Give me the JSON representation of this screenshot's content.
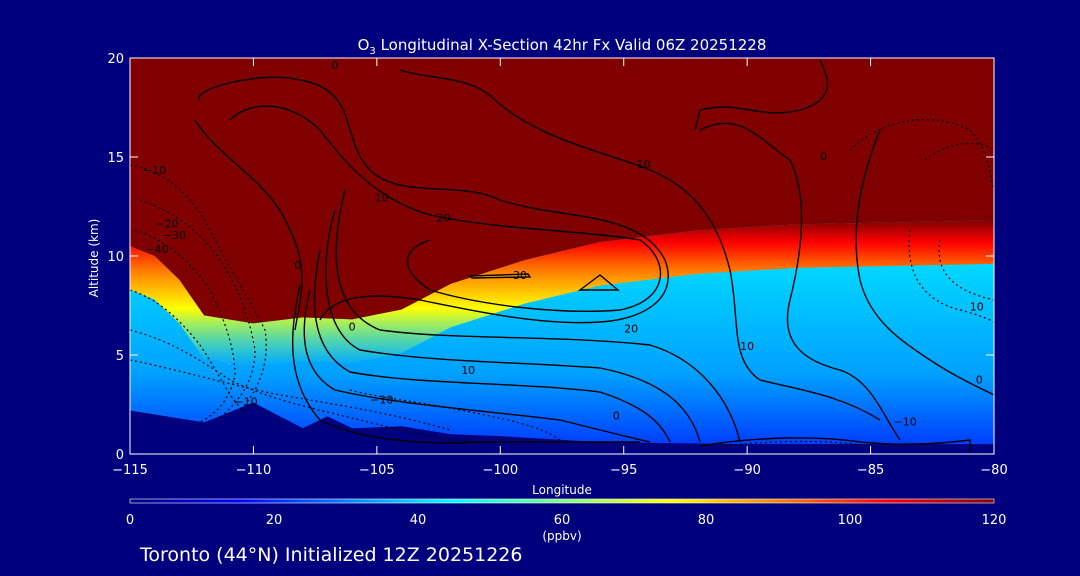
{
  "page": {
    "background": "#00007f",
    "foreground": "#ffffff"
  },
  "chart_data": {
    "type": "heatmap",
    "title_prefix": "O",
    "title_subscript": "3",
    "title_rest": " Longitudinal X-Section 42hr  Fx Valid 06Z 20251228",
    "xlabel": "Longitude",
    "ylabel": "Altitude (km)",
    "xlim": [
      -115,
      -80
    ],
    "ylim": [
      0,
      20
    ],
    "x_ticks": [
      {
        "v": -115,
        "label": "−115"
      },
      {
        "v": -110,
        "label": "−110"
      },
      {
        "v": -105,
        "label": "−105"
      },
      {
        "v": -100,
        "label": "−100"
      },
      {
        "v": -95,
        "label": "−95"
      },
      {
        "v": -90,
        "label": "−90"
      },
      {
        "v": -85,
        "label": "−85"
      },
      {
        "v": -80,
        "label": "−80"
      }
    ],
    "y_ticks": [
      {
        "v": 0,
        "label": "0"
      },
      {
        "v": 5,
        "label": "5"
      },
      {
        "v": 10,
        "label": "10"
      },
      {
        "v": 15,
        "label": "15"
      },
      {
        "v": 20,
        "label": "20"
      }
    ],
    "grid": false,
    "colorbar": {
      "min": 0,
      "max": 120,
      "units": "(ppbv)",
      "ticks": [
        {
          "v": 0,
          "label": "0"
        },
        {
          "v": 20,
          "label": "20"
        },
        {
          "v": 40,
          "label": "40"
        },
        {
          "v": 60,
          "label": "60"
        },
        {
          "v": 80,
          "label": "80"
        },
        {
          "v": 100,
          "label": "100"
        },
        {
          "v": 120,
          "label": "120"
        }
      ],
      "colors": [
        "#00007f",
        "#0000ff",
        "#0080ff",
        "#00ffff",
        "#80ff80",
        "#ffff00",
        "#ff8000",
        "#ff0000",
        "#800000"
      ]
    },
    "ozone_fields": {
      "terrain_color": "#00007f",
      "terrain_km": [
        [
          -115,
          2.2
        ],
        [
          -112,
          1.6
        ],
        [
          -110,
          2.6
        ],
        [
          -108,
          1.3
        ],
        [
          -107,
          1.9
        ],
        [
          -106,
          1.3
        ],
        [
          -104,
          1.4
        ],
        [
          -102,
          1.0
        ],
        [
          -100,
          0.9
        ],
        [
          -96,
          0.6
        ],
        [
          -90,
          0.5
        ],
        [
          -80,
          0.5
        ]
      ],
      "tropopause_km": [
        [
          -115,
          10.5
        ],
        [
          -114,
          10.0
        ],
        [
          -113,
          8.8
        ],
        [
          -112,
          7.0
        ],
        [
          -110,
          6.6
        ],
        [
          -108,
          6.9
        ],
        [
          -106,
          6.8
        ],
        [
          -104,
          7.3
        ],
        [
          -102,
          8.6
        ],
        [
          -99,
          9.8
        ],
        [
          -96,
          10.7
        ],
        [
          -92,
          11.3
        ],
        [
          -88,
          11.6
        ],
        [
          -80,
          11.8
        ]
      ]
    },
    "contour_labels": [
      {
        "x": -106,
        "y": 6.4,
        "value": "0"
      },
      {
        "x": -108.2,
        "y": 9.5,
        "value": "0"
      },
      {
        "x": -106.7,
        "y": 19.6,
        "value": "0"
      },
      {
        "x": -114,
        "y": 14.3,
        "value": "−10"
      },
      {
        "x": -113.5,
        "y": 11.6,
        "value": "−20"
      },
      {
        "x": -113.2,
        "y": 11.0,
        "value": "−30"
      },
      {
        "x": -113.9,
        "y": 10.3,
        "value": "−40"
      },
      {
        "x": -110.3,
        "y": 2.6,
        "value": "−10"
      },
      {
        "x": -104.8,
        "y": 12.9,
        "value": "10"
      },
      {
        "x": -102.3,
        "y": 11.9,
        "value": "20"
      },
      {
        "x": -99.2,
        "y": 9.0,
        "value": "30"
      },
      {
        "x": -94.7,
        "y": 6.3,
        "value": "20"
      },
      {
        "x": -94.2,
        "y": 14.6,
        "value": "10"
      },
      {
        "x": -101.3,
        "y": 4.2,
        "value": "10"
      },
      {
        "x": -104.8,
        "y": 2.7,
        "value": "−10"
      },
      {
        "x": -95.3,
        "y": 1.9,
        "value": "0"
      },
      {
        "x": -90,
        "y": 5.4,
        "value": "10"
      },
      {
        "x": -86.9,
        "y": 15.0,
        "value": "0"
      },
      {
        "x": -80.7,
        "y": 7.4,
        "value": "10"
      },
      {
        "x": -80.6,
        "y": 3.7,
        "value": "0"
      },
      {
        "x": -83.6,
        "y": 1.6,
        "value": "−10"
      }
    ]
  },
  "footer": {
    "text": "Toronto (44°N) Initialized 12Z 20251226"
  }
}
